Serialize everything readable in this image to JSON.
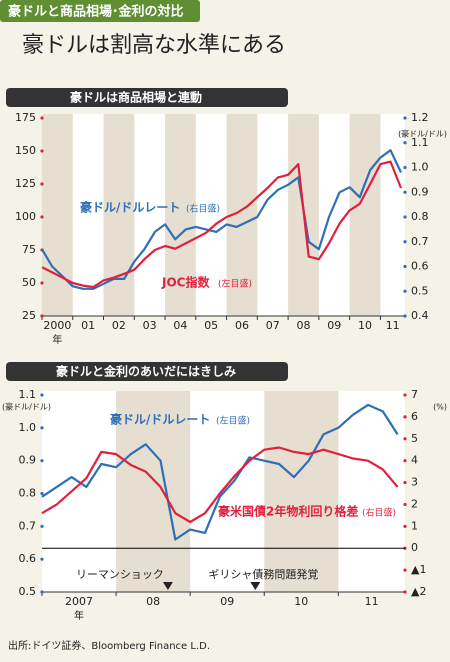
{
  "header": {
    "tab": "豪ドルと商品相場･金利の対比",
    "title": "豪ドルは割高な水準にある"
  },
  "source": "出所:ドイツ証券、Bloomberg Finance L.D.",
  "chart_data": [
    {
      "type": "line",
      "title": "豪ドルは商品相場と連動",
      "x": [
        2000.0,
        2000.33,
        2000.67,
        2001.0,
        2001.33,
        2001.67,
        2002.0,
        2002.33,
        2002.67,
        2003.0,
        2003.33,
        2003.67,
        2004.0,
        2004.33,
        2004.67,
        2005.0,
        2005.33,
        2005.67,
        2006.0,
        2006.33,
        2006.67,
        2007.0,
        2007.33,
        2007.67,
        2008.0,
        2008.33,
        2008.67,
        2009.0,
        2009.33,
        2009.67,
        2010.0,
        2010.33,
        2010.67,
        2011.0,
        2011.33,
        2011.67
      ],
      "series": [
        {
          "name": "豪ドル/ドルレート",
          "note": "(右目盛)",
          "color": "#2e6fb7",
          "axis": "y2",
          "values": [
            0.67,
            0.6,
            0.56,
            0.52,
            0.51,
            0.51,
            0.53,
            0.55,
            0.55,
            0.62,
            0.67,
            0.74,
            0.77,
            0.71,
            0.75,
            0.76,
            0.75,
            0.74,
            0.77,
            0.76,
            0.78,
            0.8,
            0.87,
            0.91,
            0.93,
            0.96,
            0.7,
            0.67,
            0.8,
            0.9,
            0.92,
            0.88,
            0.99,
            1.04,
            1.07,
            0.98
          ]
        },
        {
          "name": "JOC指数",
          "note": "(左目盛)",
          "color": "#e0203c",
          "values": [
            62,
            58,
            54,
            50,
            48,
            47,
            52,
            54,
            57,
            60,
            68,
            75,
            78,
            76,
            80,
            84,
            88,
            95,
            100,
            103,
            108,
            115,
            122,
            130,
            132,
            140,
            70,
            68,
            80,
            95,
            105,
            110,
            125,
            140,
            142,
            122
          ]
        }
      ],
      "xlim": [
        2000,
        2011.8
      ],
      "xticks": [
        {
          "value": 2000,
          "label": "2000"
        },
        {
          "value": 2001,
          "label": "01"
        },
        {
          "value": 2002,
          "label": "02"
        },
        {
          "value": 2003,
          "label": "03"
        },
        {
          "value": 2004,
          "label": "04"
        },
        {
          "value": 2005,
          "label": "05"
        },
        {
          "value": 2006,
          "label": "06"
        },
        {
          "value": 2007,
          "label": "07"
        },
        {
          "value": 2008,
          "label": "08"
        },
        {
          "value": 2009,
          "label": "09"
        },
        {
          "value": 2010,
          "label": "10"
        },
        {
          "value": 2011,
          "label": "11"
        }
      ],
      "x_unit": "年",
      "ylim": [
        25,
        175
      ],
      "yticks": [
        25,
        50,
        75,
        100,
        125,
        150,
        175
      ],
      "y2lim": [
        0.4,
        1.2
      ],
      "y2ticks": [
        0.4,
        0.5,
        0.6,
        0.7,
        0.8,
        0.9,
        {
          "value": 1,
          "label": "1.0"
        },
        1.1,
        1.2
      ],
      "y2_unit": "(豪ドル/ドル)",
      "band_shading": "even"
    },
    {
      "type": "line",
      "title": "豪ドルと金利のあいだにはきしみ",
      "x": [
        2007.0,
        2007.2,
        2007.4,
        2007.6,
        2007.8,
        2008.0,
        2008.2,
        2008.4,
        2008.6,
        2008.8,
        2009.0,
        2009.2,
        2009.4,
        2009.6,
        2009.8,
        2010.0,
        2010.2,
        2010.4,
        2010.6,
        2010.8,
        2011.0,
        2011.2,
        2011.4,
        2011.6,
        2011.8
      ],
      "series": [
        {
          "name": "豪ドル/ドルレート",
          "note": "(左目盛)",
          "color": "#2e6fb7",
          "values": [
            0.79,
            0.82,
            0.85,
            0.82,
            0.89,
            0.88,
            0.92,
            0.95,
            0.9,
            0.66,
            0.69,
            0.68,
            0.79,
            0.84,
            0.91,
            0.9,
            0.89,
            0.85,
            0.9,
            0.98,
            1.0,
            1.04,
            1.07,
            1.05,
            0.98
          ]
        },
        {
          "name": "豪米国債2年物利回り格差",
          "note": "(右目盛)",
          "color": "#e0203c",
          "axis": "y2",
          "values": [
            1.6,
            2.0,
            2.6,
            3.2,
            4.4,
            4.3,
            3.8,
            3.5,
            2.8,
            1.6,
            1.2,
            1.6,
            2.5,
            3.3,
            4.0,
            4.5,
            4.6,
            4.4,
            4.3,
            4.5,
            4.3,
            4.1,
            4.0,
            3.6,
            2.8
          ]
        }
      ],
      "xlim": [
        2007,
        2011.9
      ],
      "xticks": [
        {
          "value": 2007,
          "label": "2007"
        },
        {
          "value": 2008,
          "label": "08"
        },
        {
          "value": 2009,
          "label": "09"
        },
        {
          "value": 2010,
          "label": "10"
        },
        {
          "value": 2011,
          "label": "11"
        }
      ],
      "x_unit": "年",
      "ylim": [
        0.5,
        1.1
      ],
      "yticks": [
        0.5,
        0.6,
        0.7,
        0.8,
        0.9,
        {
          "value": 1,
          "label": "1.0"
        },
        1.1
      ],
      "y_unit": "(豪ドル/ドル)",
      "y2lim": [
        -2,
        7
      ],
      "y2ticks": [
        {
          "value": -2,
          "label": "▲2"
        },
        {
          "value": -1,
          "label": "▲1"
        },
        0,
        1,
        2,
        3,
        4,
        5,
        6,
        7
      ],
      "y2_unit": "(%)",
      "zero_line": true,
      "events": [
        {
          "x": 2008.7,
          "label": "リーマンショック"
        },
        {
          "x": 2009.88,
          "label": "ギリシャ債務問題発覚"
        }
      ],
      "band_shading": "odd"
    }
  ]
}
